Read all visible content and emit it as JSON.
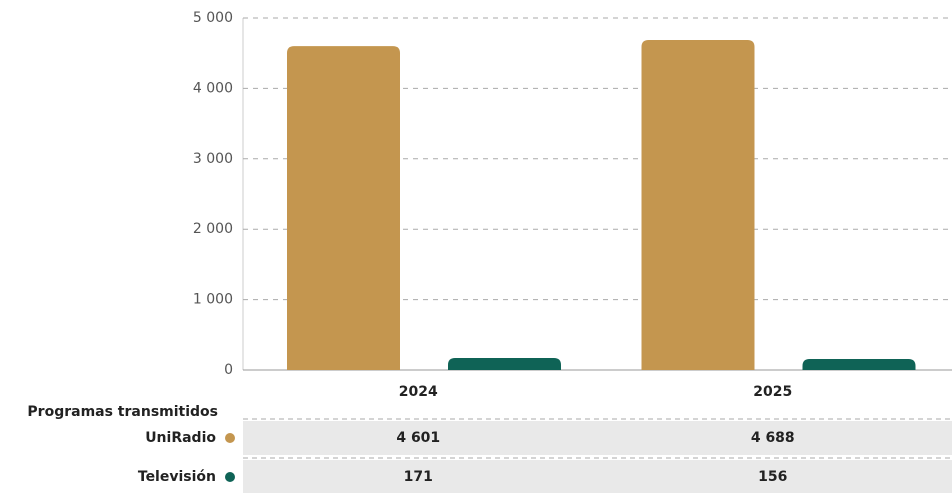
{
  "chart_data": {
    "type": "bar",
    "table_title": "Programas transmitidos",
    "categories": [
      "2024",
      "2025"
    ],
    "series": [
      {
        "name": "UniRadio",
        "color": "#c4964f",
        "values": [
          4601,
          4688
        ],
        "value_labels": [
          "4 601",
          "4 688"
        ]
      },
      {
        "name": "Televisión",
        "color": "#0f6356",
        "values": [
          171,
          156
        ]
      }
    ],
    "ylim": [
      0,
      5000
    ],
    "yticks": [
      0,
      {
        "value": 1000,
        "label": "1 000"
      },
      {
        "value": 2000,
        "label": "2 000"
      },
      {
        "value": 3000,
        "label": "3 000"
      },
      {
        "value": 4000,
        "label": "4 000"
      },
      {
        "value": 5000,
        "label": "5 000"
      }
    ],
    "grid": true
  }
}
